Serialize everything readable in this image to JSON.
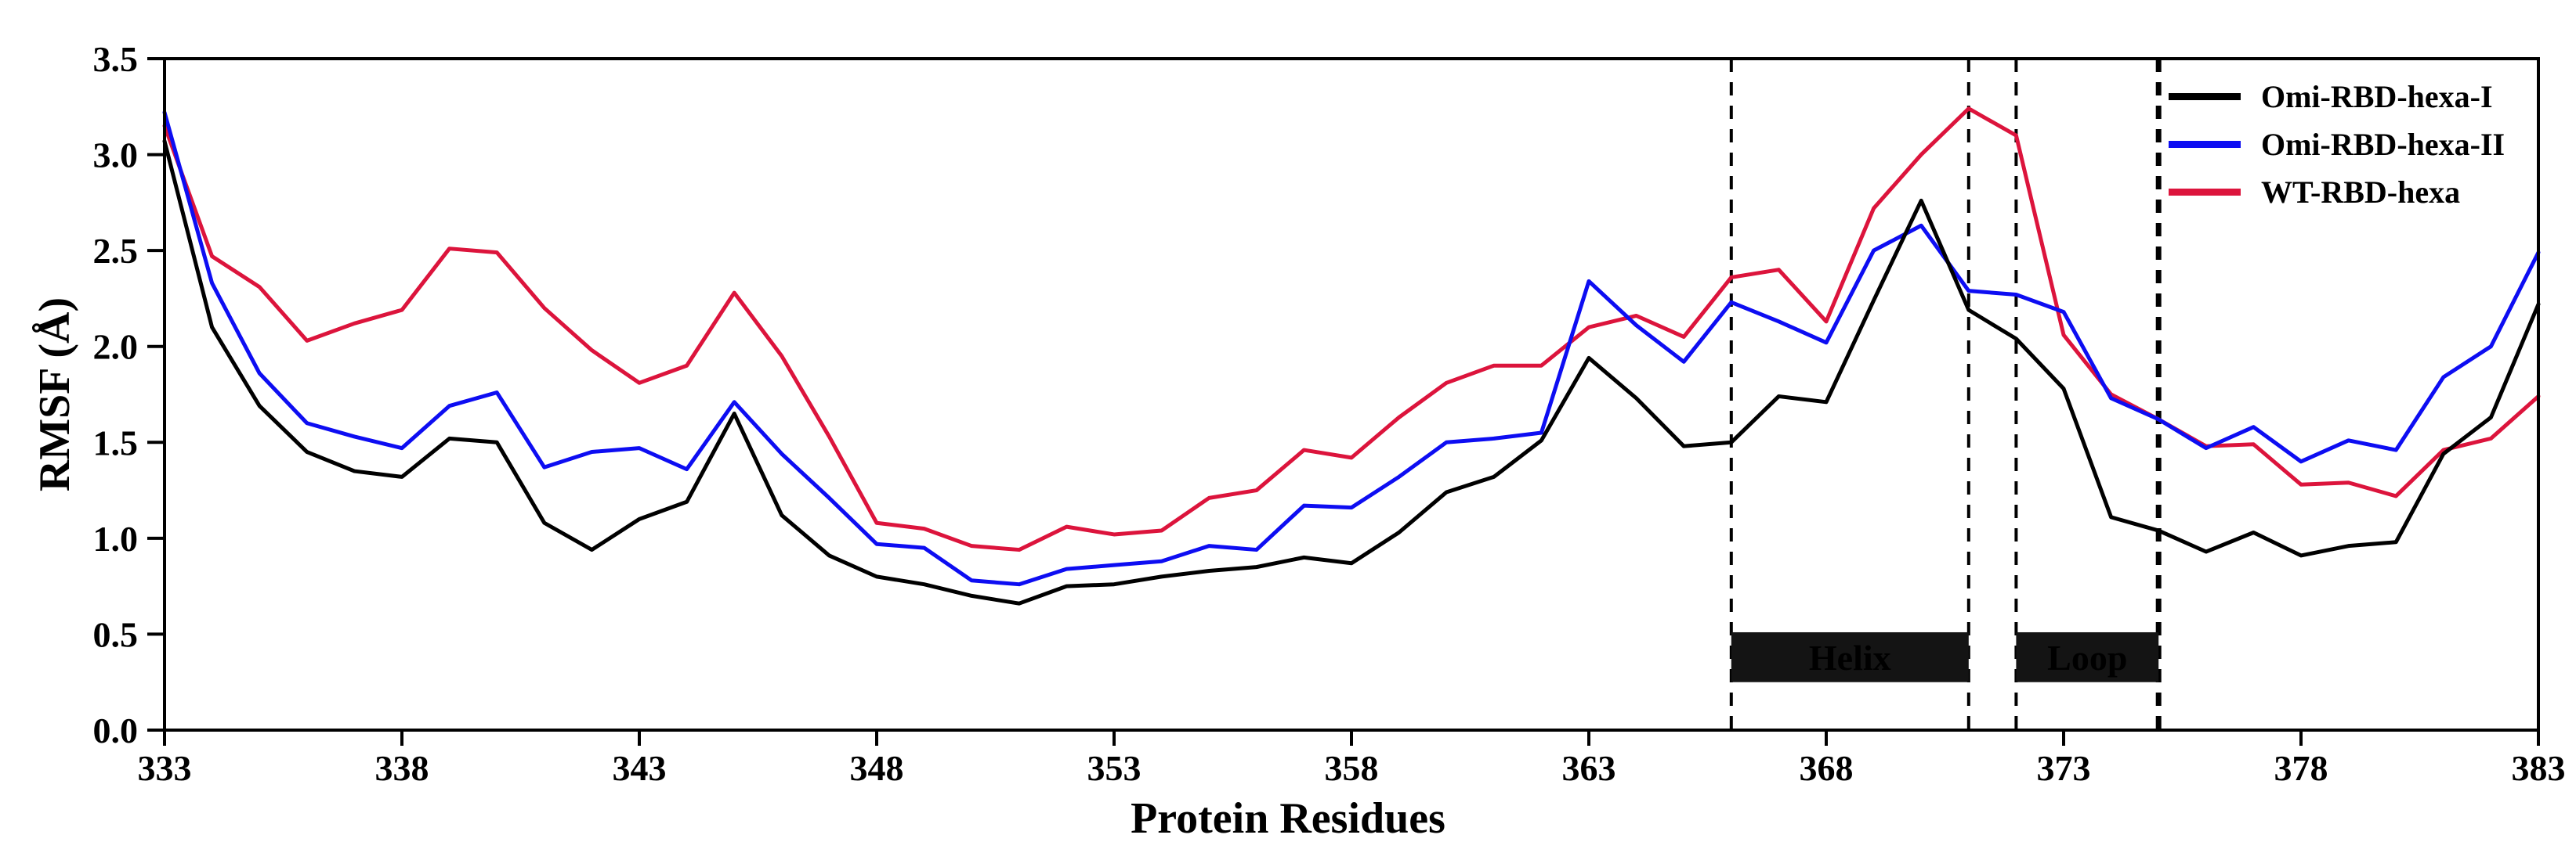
{
  "chart_data": {
    "type": "line",
    "title": "",
    "xlabel": "Protein Residues",
    "ylabel": "RMSF (Å)",
    "xlim": [
      333,
      383
    ],
    "ylim": [
      0,
      3.5
    ],
    "xticks": [
      333,
      338,
      343,
      348,
      353,
      358,
      363,
      368,
      373,
      378,
      383
    ],
    "yticks": [
      0.0,
      0.5,
      1.0,
      1.5,
      2.0,
      2.5,
      3.0,
      3.5
    ],
    "x_start": 333,
    "x_step": 1,
    "grid": false,
    "legend_position": "upper-right",
    "series": [
      {
        "name": "Omi-RBD-hexa-I",
        "color": "#000000",
        "values": [
          3.07,
          2.1,
          1.69,
          1.45,
          1.35,
          1.32,
          1.52,
          1.5,
          1.08,
          0.94,
          1.1,
          1.19,
          1.65,
          1.12,
          0.91,
          0.8,
          0.76,
          0.7,
          0.66,
          0.75,
          0.76,
          0.8,
          0.83,
          0.85,
          0.9,
          0.87,
          1.03,
          1.24,
          1.32,
          1.51,
          1.94,
          1.73,
          1.48,
          1.5,
          1.74,
          1.71,
          2.24,
          2.76,
          2.19,
          2.04,
          1.78,
          1.11,
          1.04,
          0.93,
          1.03,
          0.91,
          0.96,
          0.98,
          1.44,
          1.63,
          2.22
        ]
      },
      {
        "name": "Omi-RBD-hexa-II",
        "color": "#0d0df2",
        "values": [
          3.22,
          2.33,
          1.86,
          1.6,
          1.53,
          1.47,
          1.69,
          1.76,
          1.37,
          1.45,
          1.47,
          1.36,
          1.71,
          1.44,
          1.21,
          0.97,
          0.95,
          0.78,
          0.76,
          0.84,
          0.86,
          0.88,
          0.96,
          0.94,
          1.17,
          1.16,
          1.32,
          1.5,
          1.52,
          1.55,
          2.34,
          2.11,
          1.92,
          2.23,
          2.13,
          2.02,
          2.5,
          2.63,
          2.29,
          2.27,
          2.18,
          1.73,
          1.62,
          1.47,
          1.58,
          1.4,
          1.51,
          1.46,
          1.84,
          2.0,
          2.49
        ]
      },
      {
        "name": "WT-RBD-hexa",
        "color": "#dc143c",
        "values": [
          3.15,
          2.47,
          2.31,
          2.03,
          2.12,
          2.19,
          2.51,
          2.49,
          2.2,
          1.98,
          1.81,
          1.9,
          2.28,
          1.95,
          1.53,
          1.08,
          1.05,
          0.96,
          0.94,
          1.06,
          1.02,
          1.04,
          1.21,
          1.25,
          1.46,
          1.42,
          1.63,
          1.81,
          1.9,
          1.9,
          2.1,
          2.16,
          2.05,
          2.36,
          2.4,
          2.13,
          2.72,
          3.0,
          3.24,
          3.1,
          2.06,
          1.75,
          1.62,
          1.48,
          1.49,
          1.28,
          1.29,
          1.22,
          1.46,
          1.52,
          1.74
        ]
      }
    ],
    "annotations": {
      "dashed_vlines": [
        {
          "x": 366,
          "bold": false
        },
        {
          "x": 371,
          "bold": false
        },
        {
          "x": 372,
          "bold": false
        },
        {
          "x": 375,
          "bold": true
        }
      ],
      "region_bars": [
        {
          "label": "Helix",
          "x_start": 366,
          "x_end": 371,
          "y_bottom": 0.25,
          "y_top": 0.51,
          "fill": "#141414",
          "text_color": "#ffffff"
        },
        {
          "label": "Loop",
          "x_start": 372,
          "x_end": 375,
          "y_bottom": 0.25,
          "y_top": 0.51,
          "fill": "#141414",
          "text_color": "#ffffff"
        }
      ]
    }
  }
}
